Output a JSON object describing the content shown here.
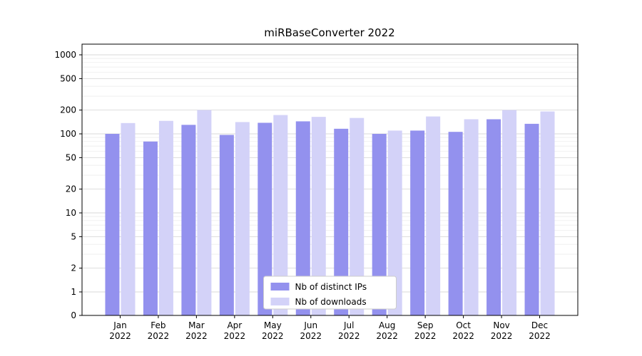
{
  "chart_data": {
    "type": "bar",
    "title": "miRBaseConverter 2022",
    "categories": [
      "Jan",
      "Feb",
      "Mar",
      "Apr",
      "May",
      "Jun",
      "Jul",
      "Aug",
      "Sep",
      "Oct",
      "Nov",
      "Dec"
    ],
    "year_label": "2022",
    "series": [
      {
        "name": "Nb of distinct IPs",
        "color": "#9391ee",
        "values": [
          100,
          80,
          130,
          97,
          138,
          144,
          116,
          100,
          110,
          106,
          153,
          134
        ]
      },
      {
        "name": "Nb of downloads",
        "color": "#d3d2f8",
        "values": [
          137,
          146,
          200,
          141,
          173,
          164,
          159,
          110,
          166,
          153,
          200,
          192
        ]
      }
    ],
    "yscale": "symlog",
    "yticks": [
      0,
      1,
      2,
      5,
      10,
      20,
      50,
      100,
      200,
      500,
      1000
    ],
    "ylim": [
      0,
      1000
    ],
    "grid": "horizontal major+minor",
    "legend_position": "lower center"
  }
}
